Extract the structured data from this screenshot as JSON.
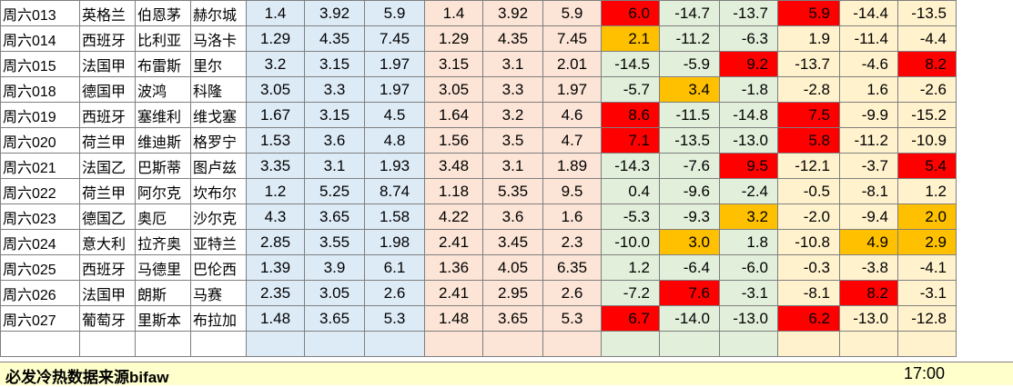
{
  "rows": [
    {
      "id": "周六013",
      "league": "英格兰",
      "home": "伯恩茅",
      "away": "赫尔城",
      "o1": "1.4",
      "o2": "3.92",
      "o3": "5.9",
      "p1": "1.4",
      "p2": "3.92",
      "p3": "5.9",
      "h1": "6.0",
      "h2": "-14.7",
      "h3": "-13.7",
      "h4": "5.9",
      "h5": "-14.4",
      "h6": "-13.5"
    },
    {
      "id": "周六014",
      "league": "西班牙",
      "home": "比利亚",
      "away": "马洛卡",
      "o1": "1.29",
      "o2": "4.35",
      "o3": "7.45",
      "p1": "1.29",
      "p2": "4.35",
      "p3": "7.45",
      "h1": "2.1",
      "h2": "-11.2",
      "h3": "-6.3",
      "h4": "1.9",
      "h5": "-11.4",
      "h6": "-4.4"
    },
    {
      "id": "周六015",
      "league": "法国甲",
      "home": "布雷斯",
      "away": "里尔",
      "o1": "3.2",
      "o2": "3.15",
      "o3": "1.97",
      "p1": "3.15",
      "p2": "3.1",
      "p3": "2.01",
      "h1": "-14.5",
      "h2": "-5.9",
      "h3": "9.2",
      "h4": "-13.7",
      "h5": "-4.6",
      "h6": "8.2"
    },
    {
      "id": "周六018",
      "league": "德国甲",
      "home": "波鸿",
      "away": "科隆",
      "o1": "3.05",
      "o2": "3.3",
      "o3": "1.97",
      "p1": "3.05",
      "p2": "3.3",
      "p3": "1.97",
      "h1": "-5.7",
      "h2": "3.4",
      "h3": "-1.8",
      "h4": "-2.8",
      "h5": "1.6",
      "h6": "-2.6"
    },
    {
      "id": "周六019",
      "league": "西班牙",
      "home": "塞维利",
      "away": "维戈塞",
      "o1": "1.67",
      "o2": "3.15",
      "o3": "4.5",
      "p1": "1.64",
      "p2": "3.2",
      "p3": "4.6",
      "h1": "8.6",
      "h2": "-11.5",
      "h3": "-14.8",
      "h4": "7.5",
      "h5": "-9.9",
      "h6": "-15.2"
    },
    {
      "id": "周六020",
      "league": "荷兰甲",
      "home": "维迪斯",
      "away": "格罗宁",
      "o1": "1.53",
      "o2": "3.6",
      "o3": "4.8",
      "p1": "1.56",
      "p2": "3.5",
      "p3": "4.7",
      "h1": "7.1",
      "h2": "-13.5",
      "h3": "-13.0",
      "h4": "5.8",
      "h5": "-11.2",
      "h6": "-10.9"
    },
    {
      "id": "周六021",
      "league": "法国乙",
      "home": "巴斯蒂",
      "away": "图卢兹",
      "o1": "3.35",
      "o2": "3.1",
      "o3": "1.93",
      "p1": "3.48",
      "p2": "3.1",
      "p3": "1.89",
      "h1": "-14.3",
      "h2": "-7.6",
      "h3": "9.5",
      "h4": "-12.1",
      "h5": "-3.7",
      "h6": "5.4"
    },
    {
      "id": "周六022",
      "league": "荷兰甲",
      "home": "阿尔克",
      "away": "坎布尔",
      "o1": "1.2",
      "o2": "5.25",
      "o3": "8.74",
      "p1": "1.18",
      "p2": "5.35",
      "p3": "9.5",
      "h1": "0.4",
      "h2": "-9.6",
      "h3": "-2.4",
      "h4": "-0.5",
      "h5": "-8.1",
      "h6": "1.2"
    },
    {
      "id": "周六023",
      "league": "德国乙",
      "home": "奥厄",
      "away": "沙尔克",
      "o1": "4.3",
      "o2": "3.65",
      "o3": "1.58",
      "p1": "4.22",
      "p2": "3.6",
      "p3": "1.6",
      "h1": "-5.3",
      "h2": "-9.3",
      "h3": "3.2",
      "h4": "-2.0",
      "h5": "-9.4",
      "h6": "2.0"
    },
    {
      "id": "周六024",
      "league": "意大利",
      "home": "拉齐奥",
      "away": "亚特兰",
      "o1": "2.85",
      "o2": "3.55",
      "o3": "1.98",
      "p1": "2.41",
      "p2": "3.45",
      "p3": "2.3",
      "h1": "-10.0",
      "h2": "3.0",
      "h3": "1.8",
      "h4": "-10.8",
      "h5": "4.9",
      "h6": "2.9"
    },
    {
      "id": "周六025",
      "league": "西班牙",
      "home": "马德里",
      "away": "巴伦西",
      "o1": "1.39",
      "o2": "3.9",
      "o3": "6.1",
      "p1": "1.36",
      "p2": "4.05",
      "p3": "6.35",
      "h1": "1.2",
      "h2": "-6.4",
      "h3": "-6.0",
      "h4": "-0.3",
      "h5": "-3.8",
      "h6": "-4.1"
    },
    {
      "id": "周六026",
      "league": "法国甲",
      "home": "朗斯",
      "away": "马赛",
      "o1": "2.35",
      "o2": "3.05",
      "o3": "2.6",
      "p1": "2.41",
      "p2": "2.95",
      "p3": "2.6",
      "h1": "-7.2",
      "h2": "7.6",
      "h3": "-3.1",
      "h4": "-8.1",
      "h5": "8.2",
      "h6": "-3.1"
    },
    {
      "id": "周六027",
      "league": "葡萄牙",
      "home": "里斯本",
      "away": "布拉加",
      "o1": "1.48",
      "o2": "3.65",
      "o3": "5.3",
      "p1": "1.48",
      "p2": "3.65",
      "p3": "5.3",
      "h1": "6.7",
      "h2": "-14.0",
      "h3": "-13.0",
      "h4": "6.2",
      "h5": "-13.0",
      "h6": "-12.8"
    }
  ],
  "highlights": [
    [
      "red",
      "",
      "",
      "red",
      "",
      ""
    ],
    [
      "orange",
      "",
      "",
      "",
      "",
      ""
    ],
    [
      "",
      "",
      "red",
      "",
      "",
      "red"
    ],
    [
      "",
      "orange",
      "",
      "",
      "",
      ""
    ],
    [
      "red",
      "",
      "",
      "red",
      "",
      ""
    ],
    [
      "red",
      "",
      "",
      "red",
      "",
      ""
    ],
    [
      "",
      "",
      "red",
      "",
      "",
      "red"
    ],
    [
      "",
      "",
      "",
      "",
      "",
      ""
    ],
    [
      "",
      "",
      "orange",
      "",
      "",
      "orange"
    ],
    [
      "",
      "orange",
      "",
      "",
      "orange",
      "orange"
    ],
    [
      "",
      "",
      "",
      "",
      "",
      ""
    ],
    [
      "",
      "red",
      "",
      "",
      "red",
      ""
    ],
    [
      "red",
      "",
      "",
      "red",
      "",
      ""
    ]
  ],
  "colors": {
    "red": "#ff0000",
    "orange": "#ffc000",
    "blue_band": "#ddebf7",
    "pink_band": "#fce4d6",
    "green_band": "#e2efda",
    "yellow_band": "#fff2cc",
    "footer_bg": "#ffffcc"
  },
  "footer": {
    "source": "必发冷热数据来源bifaw",
    "time": "17:00"
  }
}
